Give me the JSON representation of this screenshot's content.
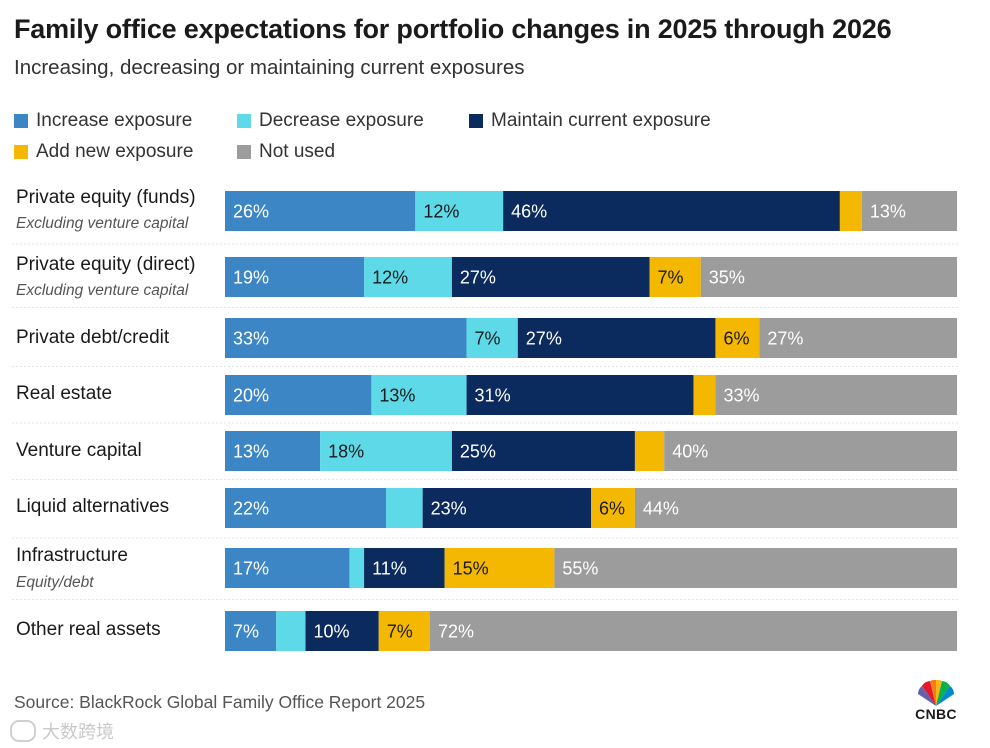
{
  "title": "Family office expectations for portfolio changes in 2025 through 2026",
  "subtitle": "Increasing, decreasing or maintaining current exposures",
  "source": "Source: BlackRock Global Family Office Report 2025",
  "watermark": "大数跨境",
  "brand": "CNBC",
  "colors": {
    "increase": "#3d86c6",
    "decrease": "#5dd9e8",
    "maintain": "#0b2a5e",
    "add": "#f5b800",
    "not_used": "#9c9c9c"
  },
  "legend": [
    {
      "key": "increase",
      "label": "Increase exposure"
    },
    {
      "key": "decrease",
      "label": "Decrease exposure"
    },
    {
      "key": "maintain",
      "label": "Maintain current exposure"
    },
    {
      "key": "add",
      "label": "Add new exposure"
    },
    {
      "key": "not_used",
      "label": "Not used"
    }
  ],
  "chart_data": {
    "type": "bar",
    "orientation": "horizontal",
    "stacked": true,
    "title": "Family office expectations for portfolio changes in 2025 through 2026",
    "subtitle": "Increasing, decreasing or maintaining current exposures",
    "unit": "%",
    "categories": [
      "Private equity (funds)",
      "Private equity (direct)",
      "Private debt/credit",
      "Real estate",
      "Venture capital",
      "Liquid alternatives",
      "Infrastructure",
      "Other real assets"
    ],
    "notes": [
      "Excluding venture capital",
      "Excluding venture capital",
      "",
      "",
      "",
      "",
      "Equity/debt",
      ""
    ],
    "series": [
      {
        "name": "Increase exposure",
        "key": "increase",
        "values": [
          26,
          19,
          33,
          20,
          13,
          22,
          17,
          7
        ],
        "labels": [
          "26%",
          "19%",
          "33%",
          "20%",
          "13%",
          "22%",
          "17%",
          "7%"
        ]
      },
      {
        "name": "Decrease exposure",
        "key": "decrease",
        "values": [
          12,
          12,
          7,
          13,
          18,
          5,
          2,
          4
        ],
        "labels": [
          "12%",
          "12%",
          "7%",
          "13%",
          "18%",
          "",
          "",
          ""
        ]
      },
      {
        "name": "Maintain current exposure",
        "key": "maintain",
        "values": [
          46,
          27,
          27,
          31,
          25,
          23,
          11,
          10
        ],
        "labels": [
          "46%",
          "27%",
          "27%",
          "31%",
          "25%",
          "23%",
          "11%",
          "10%"
        ]
      },
      {
        "name": "Add new exposure",
        "key": "add",
        "values": [
          3,
          7,
          6,
          3,
          4,
          6,
          15,
          7
        ],
        "labels": [
          "",
          "7%",
          "6%",
          "",
          "",
          "6%",
          "15%",
          "7%"
        ]
      },
      {
        "name": "Not used",
        "key": "not_used",
        "values": [
          13,
          35,
          27,
          33,
          40,
          44,
          55,
          72
        ],
        "labels": [
          "13%",
          "35%",
          "27%",
          "33%",
          "40%",
          "44%",
          "55%",
          "72%"
        ]
      }
    ]
  }
}
